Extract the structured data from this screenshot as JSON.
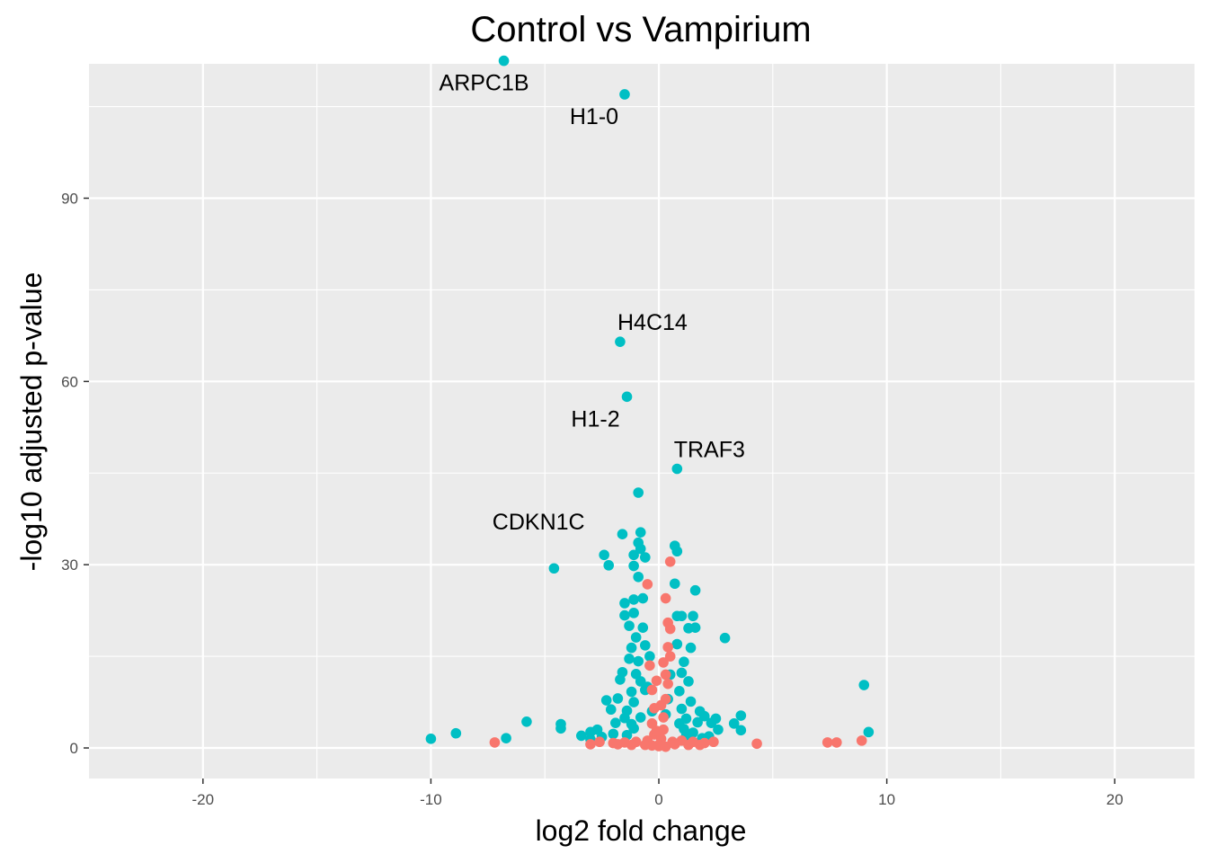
{
  "chart_data": {
    "type": "scatter",
    "title": "Control vs Vampirium",
    "xlabel": "log2 fold change",
    "ylabel": "-log10 adjusted p-value",
    "xlim": [
      -25,
      23.5
    ],
    "ylim": [
      -5,
      112
    ],
    "x_ticks": [
      -20,
      -10,
      0,
      10,
      20
    ],
    "y_ticks": [
      0,
      30,
      60,
      90
    ],
    "grid": true,
    "legend": "none",
    "colors": {
      "significant": "#00BFC4",
      "not_significant": "#F8766D",
      "panel": "#EBEBEB",
      "grid": "#FFFFFF",
      "tick": "#333333"
    },
    "labeled_genes": [
      {
        "gene": "ARPC1B",
        "x": -6.8,
        "y": 112.5
      },
      {
        "gene": "H1-0",
        "x": -1.5,
        "y": 107.0
      },
      {
        "gene": "H4C14",
        "x": -1.7,
        "y": 66.5
      },
      {
        "gene": "H1-2",
        "x": -1.4,
        "y": 57.5
      },
      {
        "gene": "TRAF3",
        "x": 0.8,
        "y": 45.7
      },
      {
        "gene": "CDKN1C",
        "x": -0.9,
        "y": 41.8
      }
    ],
    "series": [
      {
        "key": "significant",
        "points": [
          [
            -6.8,
            112.5
          ],
          [
            -1.5,
            107.0
          ],
          [
            -1.7,
            66.5
          ],
          [
            -1.4,
            57.5
          ],
          [
            0.8,
            45.7
          ],
          [
            -0.9,
            41.8
          ],
          [
            -0.8,
            35.3
          ],
          [
            -1.6,
            35.0
          ],
          [
            -0.9,
            33.6
          ],
          [
            -0.8,
            32.6
          ],
          [
            0.7,
            33.1
          ],
          [
            0.8,
            32.2
          ],
          [
            -2.4,
            31.6
          ],
          [
            -1.1,
            31.6
          ],
          [
            -0.6,
            31.2
          ],
          [
            -2.2,
            29.9
          ],
          [
            -1.1,
            29.8
          ],
          [
            -4.6,
            29.4
          ],
          [
            -0.9,
            28.0
          ],
          [
            1.6,
            25.8
          ],
          [
            -1.5,
            23.7
          ],
          [
            -1.1,
            24.3
          ],
          [
            -0.7,
            24.5
          ],
          [
            0.7,
            26.9
          ],
          [
            -1.5,
            21.7
          ],
          [
            -1.1,
            22.1
          ],
          [
            0.8,
            21.6
          ],
          [
            1.0,
            21.6
          ],
          [
            1.5,
            21.6
          ],
          [
            -1.3,
            20.0
          ],
          [
            -0.7,
            19.7
          ],
          [
            1.3,
            19.6
          ],
          [
            1.6,
            19.7
          ],
          [
            2.9,
            18.0
          ],
          [
            -1.0,
            18.1
          ],
          [
            -1.2,
            16.4
          ],
          [
            -0.6,
            16.8
          ],
          [
            0.8,
            17.0
          ],
          [
            1.4,
            16.4
          ],
          [
            -1.3,
            14.6
          ],
          [
            -0.9,
            14.2
          ],
          [
            1.1,
            14.1
          ],
          [
            -1.6,
            12.4
          ],
          [
            -1.0,
            12.1
          ],
          [
            1.0,
            12.3
          ],
          [
            -1.7,
            11.2
          ],
          [
            -0.8,
            10.9
          ],
          [
            1.3,
            10.9
          ],
          [
            -1.2,
            9.2
          ],
          [
            -0.6,
            9.5
          ],
          [
            0.9,
            9.3
          ],
          [
            9.0,
            10.3
          ],
          [
            -2.3,
            7.8
          ],
          [
            -1.8,
            8.1
          ],
          [
            -1.1,
            7.5
          ],
          [
            1.4,
            7.6
          ],
          [
            -2.1,
            6.3
          ],
          [
            -1.4,
            6.1
          ],
          [
            1.0,
            6.4
          ],
          [
            1.8,
            6.0
          ],
          [
            -1.5,
            4.9
          ],
          [
            -0.8,
            5.0
          ],
          [
            1.2,
            4.8
          ],
          [
            2.0,
            5.2
          ],
          [
            2.5,
            4.8
          ],
          [
            3.6,
            5.3
          ],
          [
            -1.9,
            4.1
          ],
          [
            -1.2,
            3.9
          ],
          [
            0.9,
            4.0
          ],
          [
            1.7,
            4.2
          ],
          [
            2.3,
            4.1
          ],
          [
            3.3,
            4.0
          ],
          [
            -5.8,
            4.3
          ],
          [
            -4.3,
            3.9
          ],
          [
            -2.7,
            3.0
          ],
          [
            -1.1,
            3.2
          ],
          [
            1.1,
            3.1
          ],
          [
            2.6,
            3.0
          ],
          [
            3.6,
            2.9
          ],
          [
            -4.3,
            3.2
          ],
          [
            -3.0,
            2.6
          ],
          [
            -2.0,
            2.3
          ],
          [
            1.5,
            2.5
          ],
          [
            9.2,
            2.6
          ],
          [
            -3.4,
            2.0
          ],
          [
            -2.5,
            1.8
          ],
          [
            -1.4,
            2.1
          ],
          [
            1.2,
            2.0
          ],
          [
            2.2,
            1.9
          ],
          [
            -8.9,
            2.4
          ],
          [
            -10.0,
            1.5
          ],
          [
            -6.7,
            1.6
          ],
          [
            -3.0,
            1.4
          ],
          [
            1.9,
            1.6
          ],
          [
            -0.5,
            10.0
          ],
          [
            -0.4,
            15.0
          ],
          [
            0.4,
            8.0
          ],
          [
            0.5,
            12.0
          ],
          [
            -0.3,
            6.0
          ],
          [
            0.3,
            5.5
          ]
        ]
      },
      {
        "key": "not_significant",
        "points": [
          [
            0.5,
            30.5
          ],
          [
            -0.5,
            26.8
          ],
          [
            0.3,
            24.5
          ],
          [
            0.4,
            20.5
          ],
          [
            0.5,
            19.5
          ],
          [
            0.4,
            16.5
          ],
          [
            0.5,
            15.0
          ],
          [
            -0.4,
            13.5
          ],
          [
            0.3,
            12.0
          ],
          [
            0.4,
            10.5
          ],
          [
            -0.3,
            9.5
          ],
          [
            0.3,
            8.0
          ],
          [
            -0.2,
            6.5
          ],
          [
            0.2,
            5.0
          ],
          [
            -0.3,
            4.0
          ],
          [
            0.2,
            3.0
          ],
          [
            -0.2,
            2.2
          ],
          [
            0.1,
            1.5
          ],
          [
            -0.5,
            1.2
          ],
          [
            0.6,
            1.0
          ],
          [
            -1.0,
            1.0
          ],
          [
            1.0,
            1.2
          ],
          [
            -1.5,
            0.9
          ],
          [
            1.5,
            1.0
          ],
          [
            -2.0,
            0.8
          ],
          [
            2.0,
            0.8
          ],
          [
            2.4,
            1.0
          ],
          [
            -2.6,
            1.0
          ],
          [
            -3.0,
            0.6
          ],
          [
            -7.2,
            0.9
          ],
          [
            4.3,
            0.7
          ],
          [
            7.4,
            0.9
          ],
          [
            7.8,
            0.9
          ],
          [
            8.9,
            1.2
          ],
          [
            0.0,
            0.5
          ],
          [
            -0.1,
            2.8
          ],
          [
            0.1,
            7.0
          ],
          [
            -0.1,
            11.0
          ],
          [
            0.2,
            14.0
          ],
          [
            -0.6,
            0.5
          ],
          [
            0.7,
            0.6
          ],
          [
            -1.2,
            0.5
          ],
          [
            1.3,
            0.5
          ],
          [
            -1.8,
            0.6
          ],
          [
            1.8,
            0.5
          ],
          [
            0.0,
            0.3
          ],
          [
            0.3,
            0.2
          ],
          [
            -0.3,
            0.4
          ]
        ]
      }
    ]
  }
}
